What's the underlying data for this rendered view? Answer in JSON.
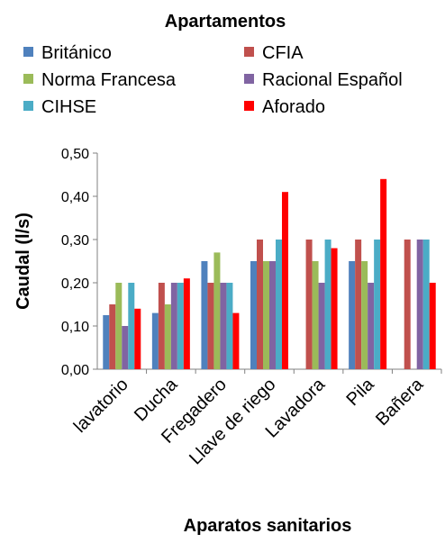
{
  "chart_data": {
    "type": "bar",
    "title": "Apartamentos",
    "xlabel": "Aparatos sanitarios",
    "ylabel": "Caudal (l/s)",
    "ylim": [
      0,
      0.5
    ],
    "yticks": [
      "0,00",
      "0,10",
      "0,20",
      "0,30",
      "0,40",
      "0,50"
    ],
    "yticks_values": [
      0,
      0.1,
      0.2,
      0.3,
      0.4,
      0.5
    ],
    "grid": false,
    "legend_position": "top",
    "categories": [
      "lavatorio",
      "Ducha",
      "Fregadero",
      "Llave de riego",
      "Lavadora",
      "Pila",
      "Bañera"
    ],
    "series": [
      {
        "name": "Británico",
        "color": "#4F81BD",
        "values": [
          0.125,
          0.13,
          0.25,
          0.25,
          null,
          0.25,
          null
        ]
      },
      {
        "name": "CFIA",
        "color": "#C0504D",
        "values": [
          0.15,
          0.2,
          0.2,
          0.3,
          0.3,
          0.3,
          0.3
        ]
      },
      {
        "name": "Norma Francesa",
        "color": "#9BBB59",
        "values": [
          0.2,
          0.15,
          0.27,
          0.25,
          0.25,
          0.25,
          null
        ]
      },
      {
        "name": "Racional Español",
        "color": "#8064A2",
        "values": [
          0.1,
          0.2,
          0.2,
          0.25,
          0.2,
          0.2,
          0.3
        ]
      },
      {
        "name": "CIHSE",
        "color": "#4BACC6",
        "values": [
          0.2,
          0.2,
          0.2,
          0.3,
          0.3,
          0.3,
          0.3
        ]
      },
      {
        "name": "Aforado",
        "color": "#FF0000",
        "values": [
          0.14,
          0.21,
          0.13,
          0.41,
          0.28,
          0.44,
          0.2
        ]
      }
    ]
  }
}
